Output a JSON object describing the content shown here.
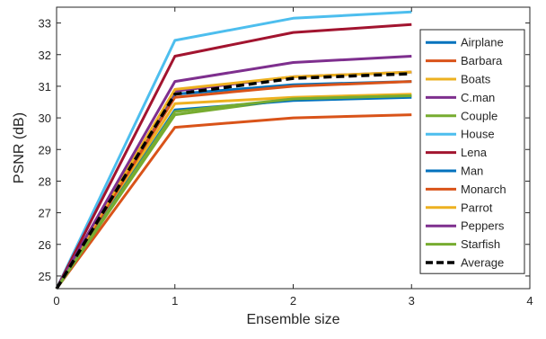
{
  "chart_data": {
    "type": "line",
    "xlabel": "Ensemble size",
    "ylabel": "PSNR (dB)",
    "xlim": [
      0,
      4
    ],
    "ylim": [
      24.6,
      33.5
    ],
    "xticks": [
      0,
      1,
      2,
      3,
      4
    ],
    "yticks": [
      25,
      26,
      27,
      28,
      29,
      30,
      31,
      32,
      33
    ],
    "grid": false,
    "legend_position": "right",
    "x": [
      0,
      1,
      2,
      3
    ],
    "series": [
      {
        "name": "Airplane",
        "color": "#0072BD",
        "dashed": false,
        "values": [
          24.6,
          30.75,
          31.05,
          31.15
        ]
      },
      {
        "name": "Barbara",
        "color": "#D95319",
        "dashed": false,
        "values": [
          24.6,
          29.7,
          30.0,
          30.1
        ]
      },
      {
        "name": "Boats",
        "color": "#EDB120",
        "dashed": false,
        "values": [
          24.6,
          30.45,
          30.65,
          30.75
        ]
      },
      {
        "name": "C.man",
        "color": "#7E2F8E",
        "dashed": false,
        "values": [
          24.6,
          30.85,
          31.3,
          31.45
        ]
      },
      {
        "name": "Couple",
        "color": "#77AC30",
        "dashed": false,
        "values": [
          24.6,
          30.1,
          30.6,
          30.7
        ]
      },
      {
        "name": "House",
        "color": "#4DBEEE",
        "dashed": false,
        "values": [
          24.6,
          32.45,
          33.15,
          33.35
        ]
      },
      {
        "name": "Lena",
        "color": "#A2142F",
        "dashed": false,
        "values": [
          24.6,
          31.95,
          32.7,
          32.95
        ]
      },
      {
        "name": "Man",
        "color": "#0072BD",
        "dashed": false,
        "values": [
          24.6,
          30.25,
          30.55,
          30.65
        ]
      },
      {
        "name": "Monarch",
        "color": "#D95319",
        "dashed": false,
        "values": [
          24.6,
          30.65,
          31.0,
          31.15
        ]
      },
      {
        "name": "Parrot",
        "color": "#EDB120",
        "dashed": false,
        "values": [
          24.6,
          30.9,
          31.3,
          31.45
        ]
      },
      {
        "name": "Peppers",
        "color": "#7E2F8E",
        "dashed": false,
        "values": [
          24.6,
          31.15,
          31.75,
          31.95
        ]
      },
      {
        "name": "Starfish",
        "color": "#77AC30",
        "dashed": false,
        "values": [
          24.6,
          30.2,
          30.6,
          30.7
        ]
      },
      {
        "name": "Average",
        "color": "#000000",
        "dashed": true,
        "values": [
          24.6,
          30.75,
          31.25,
          31.4
        ]
      }
    ]
  }
}
